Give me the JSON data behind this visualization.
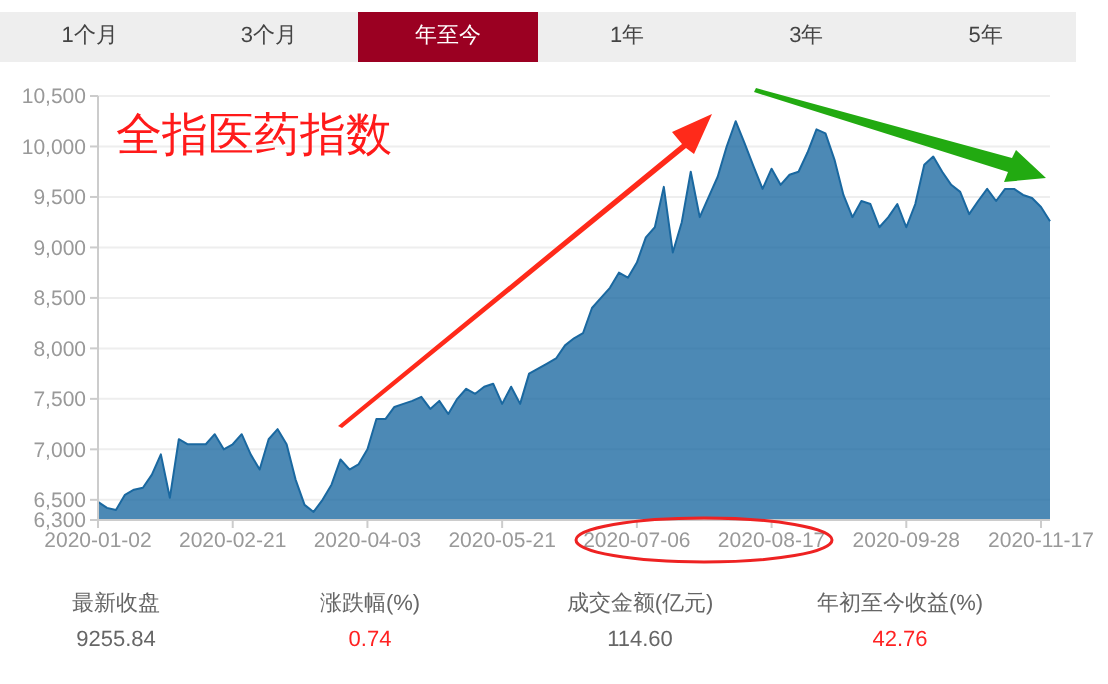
{
  "chart_data": {
    "type": "area",
    "title": "全指医药指数",
    "categories": [
      "2020-01-02",
      null,
      null,
      null,
      null,
      null,
      null,
      null,
      null,
      null,
      null,
      null,
      null,
      null,
      null,
      "2020-02-21",
      null,
      null,
      null,
      null,
      null,
      null,
      null,
      null,
      null,
      null,
      null,
      null,
      null,
      null,
      "2020-04-03",
      null,
      null,
      null,
      null,
      null,
      null,
      null,
      null,
      null,
      null,
      null,
      null,
      null,
      null,
      "2020-05-21",
      null,
      null,
      null,
      null,
      null,
      null,
      null,
      null,
      null,
      null,
      null,
      null,
      null,
      null,
      "2020-07-06",
      null,
      null,
      null,
      null,
      null,
      null,
      null,
      null,
      null,
      null,
      null,
      null,
      null,
      null,
      "2020-08-17",
      null,
      null,
      null,
      null,
      null,
      null,
      null,
      null,
      null,
      null,
      null,
      null,
      null,
      null,
      "2020-09-28",
      null,
      null,
      null,
      null,
      null,
      null,
      null,
      null,
      null,
      null,
      null,
      null,
      null,
      null,
      "2020-11-17",
      null
    ],
    "series": [
      {
        "color": "#1a68a0",
        "values": [
          6480,
          6420,
          6400,
          6550,
          6600,
          6620,
          6750,
          6950,
          6520,
          7100,
          7050,
          7050,
          7050,
          7150,
          7000,
          7050,
          7150,
          6950,
          6800,
          7100,
          7200,
          7050,
          6700,
          6450,
          6380,
          6500,
          6650,
          6900,
          6800,
          6850,
          7000,
          7300,
          7300,
          7420,
          7450,
          7480,
          7520,
          7400,
          7480,
          7350,
          7500,
          7600,
          7550,
          7620,
          7650,
          7450,
          7620,
          7450,
          7750,
          7800,
          7850,
          7900,
          8030,
          8100,
          8150,
          8400,
          8500,
          8600,
          8750,
          8700,
          8850,
          9100,
          9200,
          9600,
          8950,
          9250,
          9750,
          9300,
          9500,
          9700,
          10000,
          10250,
          10030,
          9800,
          9580,
          9780,
          9620,
          9720,
          9750,
          9940,
          10170,
          10130,
          9870,
          9520,
          9300,
          9460,
          9430,
          9200,
          9300,
          9430,
          9200,
          9430,
          9820,
          9900,
          9750,
          9620,
          9550,
          9330,
          9460,
          9580,
          9460,
          9580,
          9580,
          9520,
          9490,
          9400,
          9260
        ]
      }
    ],
    "ylim": [
      6300,
      10500
    ],
    "yticks": [
      {
        "value": 6300,
        "label": "6,300"
      },
      {
        "value": 6500,
        "label": "6,500"
      },
      {
        "value": 7000,
        "label": "7,000"
      },
      {
        "value": 7500,
        "label": "7,500"
      },
      {
        "value": 8000,
        "label": "8,000"
      },
      {
        "value": 8500,
        "label": "8,500"
      },
      {
        "value": 9000,
        "label": "9,000"
      },
      {
        "value": 9500,
        "label": "9,500"
      },
      {
        "value": 10000,
        "label": "10,000"
      },
      {
        "value": 10500,
        "label": "10,500"
      }
    ],
    "grid": "y",
    "legend": false,
    "marker": "none",
    "annotations": [
      "1个月",
      "3个月",
      "年至今",
      "1年",
      "3年",
      "5年",
      "最新收盘",
      "9255.84",
      "涨跌幅(%)",
      "0.74",
      "成交金额(亿元)",
      "114.60",
      "年初至今收益(%)",
      "42.76"
    ]
  }
}
